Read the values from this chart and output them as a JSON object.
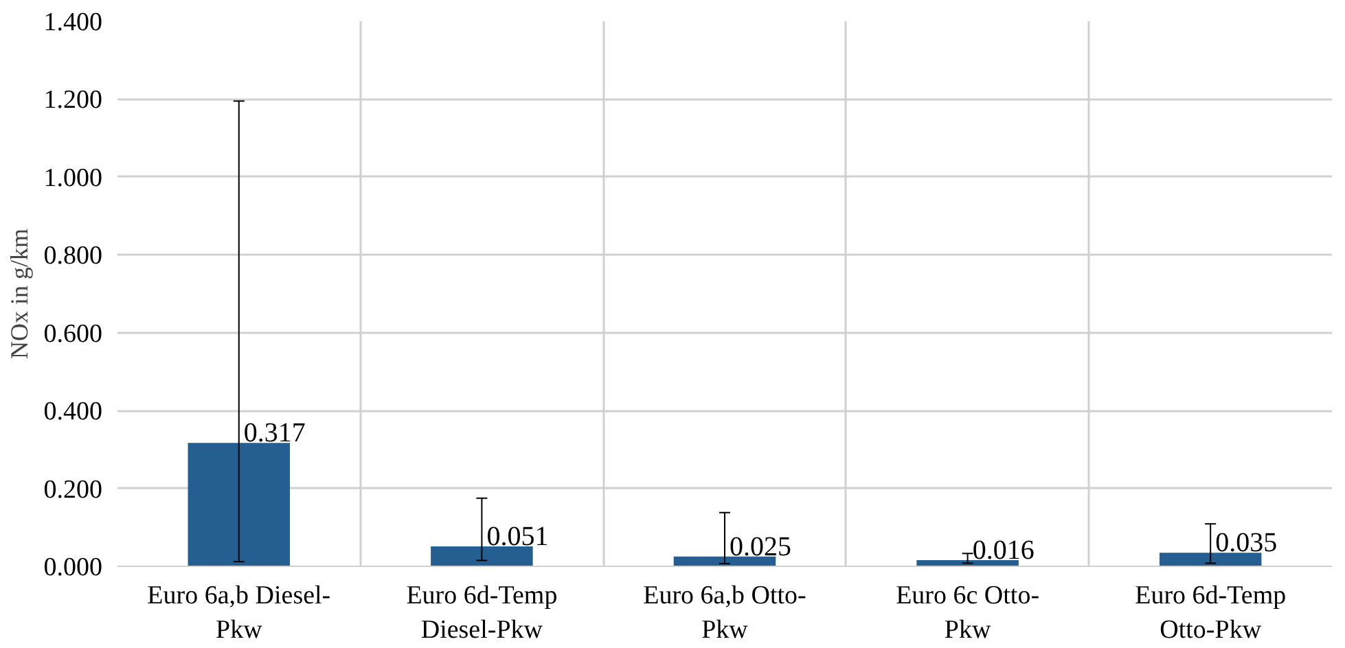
{
  "chart_data": {
    "type": "bar",
    "ylabel": "NOx in g/km",
    "categories": [
      "Euro 6a,b Diesel-\nPkw",
      "Euro 6d-Temp\nDiesel-Pkw",
      "Euro 6a,b Otto-\nPkw",
      "Euro 6c Otto-\nPkw",
      "Euro 6d-Temp\nOtto-Pkw"
    ],
    "values": [
      0.317,
      0.051,
      0.025,
      0.016,
      0.035
    ],
    "errors": [
      [
        0.012,
        1.195
      ],
      [
        0.015,
        0.175
      ],
      [
        0.007,
        0.138
      ],
      [
        0.008,
        0.033
      ],
      [
        0.008,
        0.109
      ]
    ],
    "color": "#255e91",
    "data_labels": true,
    "ylim": [
      0,
      1.4
    ],
    "yticks": [
      {
        "value": 0,
        "label": "0.000"
      },
      {
        "value": 0.2,
        "label": "0.200"
      },
      {
        "value": 0.4,
        "label": "0.400"
      },
      {
        "value": 0.6,
        "label": "0.600"
      },
      {
        "value": 0.8,
        "label": "0.800"
      },
      {
        "value": 1.0,
        "label": "1.000"
      },
      {
        "value": 1.2,
        "label": "1.200"
      },
      {
        "value": 1.4,
        "label": "1.400"
      }
    ],
    "grid": true
  }
}
